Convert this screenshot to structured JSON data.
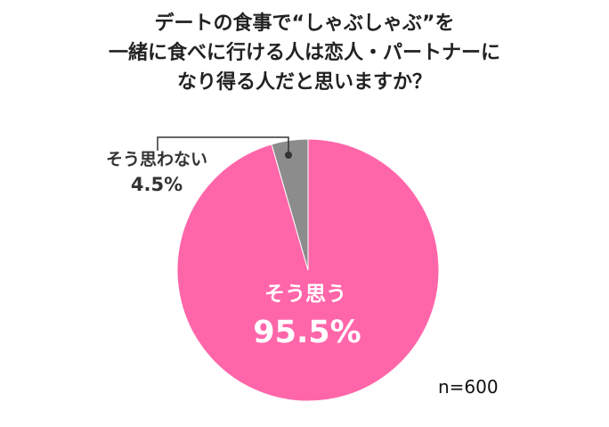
{
  "title_lines": [
    "デートの食事で“しゃぶしゃぶ”を",
    "一緒に食べに行ける人は恋人・パートナーに",
    "なり得る人だと思いますか？"
  ],
  "sample_size": "n=600",
  "colors": {
    "yes": "#ff66aa",
    "no": "#8c8c8c",
    "leader": "#333333"
  },
  "chart_data": {
    "type": "pie",
    "title": "デートの食事で“しゃぶしゃぶ”を一緒に食べに行ける人は恋人・パートナーになり得る人だと思いますか？",
    "slices": [
      {
        "label": "そう思う",
        "value": 95.5,
        "value_label": "95.5%"
      },
      {
        "label": "そう思わない",
        "value": 4.5,
        "value_label": "4.5%"
      }
    ],
    "start": "12 o'clock",
    "direction": "clockwise",
    "note": "n=600"
  }
}
